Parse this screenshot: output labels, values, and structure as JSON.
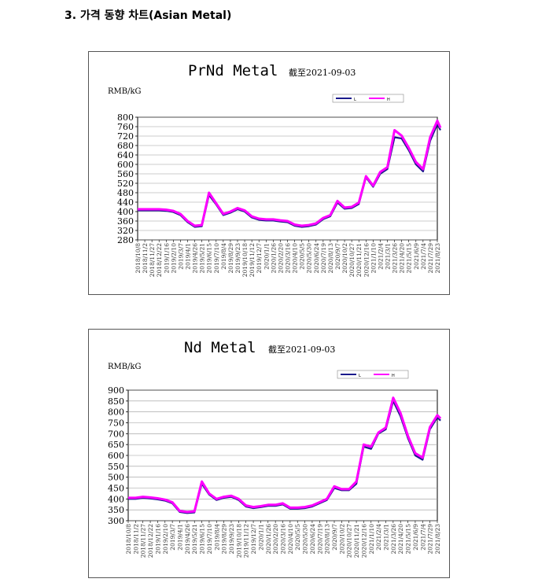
{
  "heading": "3. 가격 동향 차트(Asian Metal)",
  "chart_data": [
    {
      "type": "line",
      "title": "PrNd Metal",
      "subtitle": "截至2021-09-03",
      "ylabel": "RMB/kG",
      "ylim": [
        280,
        800
      ],
      "yticks": [
        280,
        320,
        360,
        400,
        440,
        480,
        520,
        560,
        600,
        640,
        680,
        720,
        760,
        800
      ],
      "grid": true,
      "legend": {
        "position": "top-right",
        "entries": [
          "L",
          "H"
        ]
      },
      "colors": {
        "low": "#1a1a8c",
        "high": "#ff00ff"
      },
      "xticks": [
        "2018/10/8",
        "2018/11/2",
        "2018/11/27",
        "2018/12/22",
        "2019/1/16",
        "2019/2/10",
        "2019/3/7",
        "2019/4/1",
        "2019/4/26",
        "2019/5/21",
        "2019/6/15",
        "2019/7/10",
        "2019/8/4",
        "2019/8/29",
        "2019/9/23",
        "2019/10/18",
        "2019/11/12",
        "2019/12/7",
        "2020/1/1",
        "2020/1/26",
        "2020/2/20",
        "2020/3/16",
        "2020/4/10",
        "2020/5/5",
        "2020/5/30",
        "2020/6/24",
        "2020/7/19",
        "2020/8/13",
        "2020/9/7",
        "2020/10/2",
        "2020/10/27",
        "2020/11/21",
        "2020/12/16",
        "2021/1/10",
        "2021/2/4",
        "2021/3/1",
        "2021/3/26",
        "2021/4/20",
        "2021/5/15",
        "2021/6/9",
        "2021/7/4",
        "2021/7/29",
        "2021/8/23"
      ],
      "x": [
        "2018/10/8",
        "2018/11/2",
        "2018/11/27",
        "2018/12/22",
        "2019/1/16",
        "2019/2/10",
        "2019/3/7",
        "2019/4/1",
        "2019/4/26",
        "2019/5/21",
        "2019/6/15",
        "2019/7/10",
        "2019/8/4",
        "2019/8/29",
        "2019/9/23",
        "2019/10/18",
        "2019/11/12",
        "2019/12/7",
        "2020/1/1",
        "2020/1/26",
        "2020/2/20",
        "2020/3/16",
        "2020/4/10",
        "2020/5/5",
        "2020/5/30",
        "2020/6/24",
        "2020/7/19",
        "2020/8/13",
        "2020/9/7",
        "2020/10/2",
        "2020/10/27",
        "2020/11/21",
        "2020/12/16",
        "2021/1/10",
        "2021/2/4",
        "2021/3/1",
        "2021/3/26",
        "2021/4/20",
        "2021/5/15",
        "2021/6/9",
        "2021/7/4",
        "2021/7/29",
        "2021/8/23",
        "2021/9/3"
      ],
      "series": [
        {
          "name": "L",
          "values": [
            405,
            405,
            405,
            405,
            403,
            398,
            385,
            355,
            335,
            338,
            470,
            430,
            385,
            395,
            410,
            400,
            375,
            365,
            362,
            362,
            358,
            355,
            340,
            335,
            338,
            345,
            368,
            380,
            438,
            412,
            415,
            432,
            545,
            505,
            560,
            580,
            715,
            710,
            660,
            600,
            570,
            700,
            770,
            745
          ]
        },
        {
          "name": "H",
          "values": [
            410,
            410,
            410,
            410,
            408,
            403,
            390,
            360,
            340,
            343,
            480,
            435,
            390,
            400,
            415,
            405,
            380,
            370,
            367,
            367,
            363,
            360,
            345,
            340,
            343,
            350,
            373,
            385,
            445,
            417,
            420,
            438,
            550,
            510,
            568,
            588,
            745,
            722,
            670,
            610,
            580,
            715,
            785,
            755
          ]
        }
      ]
    },
    {
      "type": "line",
      "title": "Nd Metal",
      "subtitle": "截至2021-09-03",
      "ylabel": "RMB/kG",
      "ylim": [
        300,
        900
      ],
      "yticks": [
        300,
        350,
        400,
        450,
        500,
        550,
        600,
        650,
        700,
        750,
        800,
        850,
        900
      ],
      "grid": true,
      "legend": {
        "position": "top-right",
        "entries": [
          "L",
          "H"
        ]
      },
      "colors": {
        "low": "#1a1a8c",
        "high": "#ff00ff"
      },
      "xticks": [
        "2018/10/8",
        "2018/11/2",
        "2018/11/27",
        "2018/12/22",
        "2019/1/16",
        "2019/2/10",
        "2019/3/7",
        "2019/4/1",
        "2019/4/26",
        "2019/5/21",
        "2019/6/15",
        "2019/7/10",
        "2019/8/4",
        "2019/8/29",
        "2019/9/23",
        "2019/10/18",
        "2019/11/12",
        "2019/12/7",
        "2020/1/1",
        "2020/1/26",
        "2020/2/20",
        "2020/3/16",
        "2020/4/10",
        "2020/5/5",
        "2020/5/30",
        "2020/6/24",
        "2020/7/19",
        "2020/8/13",
        "2020/9/7",
        "2020/10/2",
        "2020/10/27",
        "2020/11/21",
        "2020/12/16",
        "2021/1/10",
        "2021/2/4",
        "2021/3/1",
        "2021/3/26",
        "2021/4/20",
        "2021/5/15",
        "2021/6/9",
        "2021/7/4",
        "2021/7/29",
        "2021/8/23"
      ],
      "x": [
        "2018/10/8",
        "2018/11/2",
        "2018/11/27",
        "2018/12/22",
        "2019/1/16",
        "2019/2/10",
        "2019/3/7",
        "2019/4/1",
        "2019/4/26",
        "2019/5/21",
        "2019/6/15",
        "2019/7/10",
        "2019/8/4",
        "2019/8/29",
        "2019/9/23",
        "2019/10/18",
        "2019/11/12",
        "2019/12/7",
        "2020/1/1",
        "2020/1/26",
        "2020/2/20",
        "2020/3/16",
        "2020/4/10",
        "2020/5/5",
        "2020/5/30",
        "2020/6/24",
        "2020/7/19",
        "2020/8/13",
        "2020/9/7",
        "2020/10/2",
        "2020/10/27",
        "2020/11/21",
        "2020/12/16",
        "2021/1/10",
        "2021/2/4",
        "2021/3/1",
        "2021/3/26",
        "2021/4/20",
        "2021/5/15",
        "2021/6/9",
        "2021/7/4",
        "2021/7/29",
        "2021/8/23",
        "2021/9/3"
      ],
      "series": [
        {
          "name": "L",
          "values": [
            400,
            400,
            405,
            402,
            398,
            392,
            380,
            340,
            335,
            338,
            470,
            420,
            395,
            405,
            410,
            395,
            365,
            358,
            362,
            368,
            368,
            375,
            355,
            355,
            358,
            365,
            380,
            395,
            450,
            440,
            440,
            470,
            640,
            630,
            700,
            720,
            850,
            780,
            680,
            600,
            580,
            720,
            775,
            760
          ]
        },
        {
          "name": "H",
          "values": [
            405,
            405,
            410,
            407,
            403,
            397,
            385,
            345,
            340,
            343,
            480,
            425,
            400,
            410,
            415,
            400,
            370,
            363,
            367,
            373,
            373,
            380,
            360,
            360,
            363,
            370,
            385,
            400,
            458,
            445,
            445,
            480,
            650,
            640,
            705,
            728,
            865,
            795,
            690,
            610,
            590,
            730,
            785,
            770
          ]
        }
      ]
    }
  ]
}
